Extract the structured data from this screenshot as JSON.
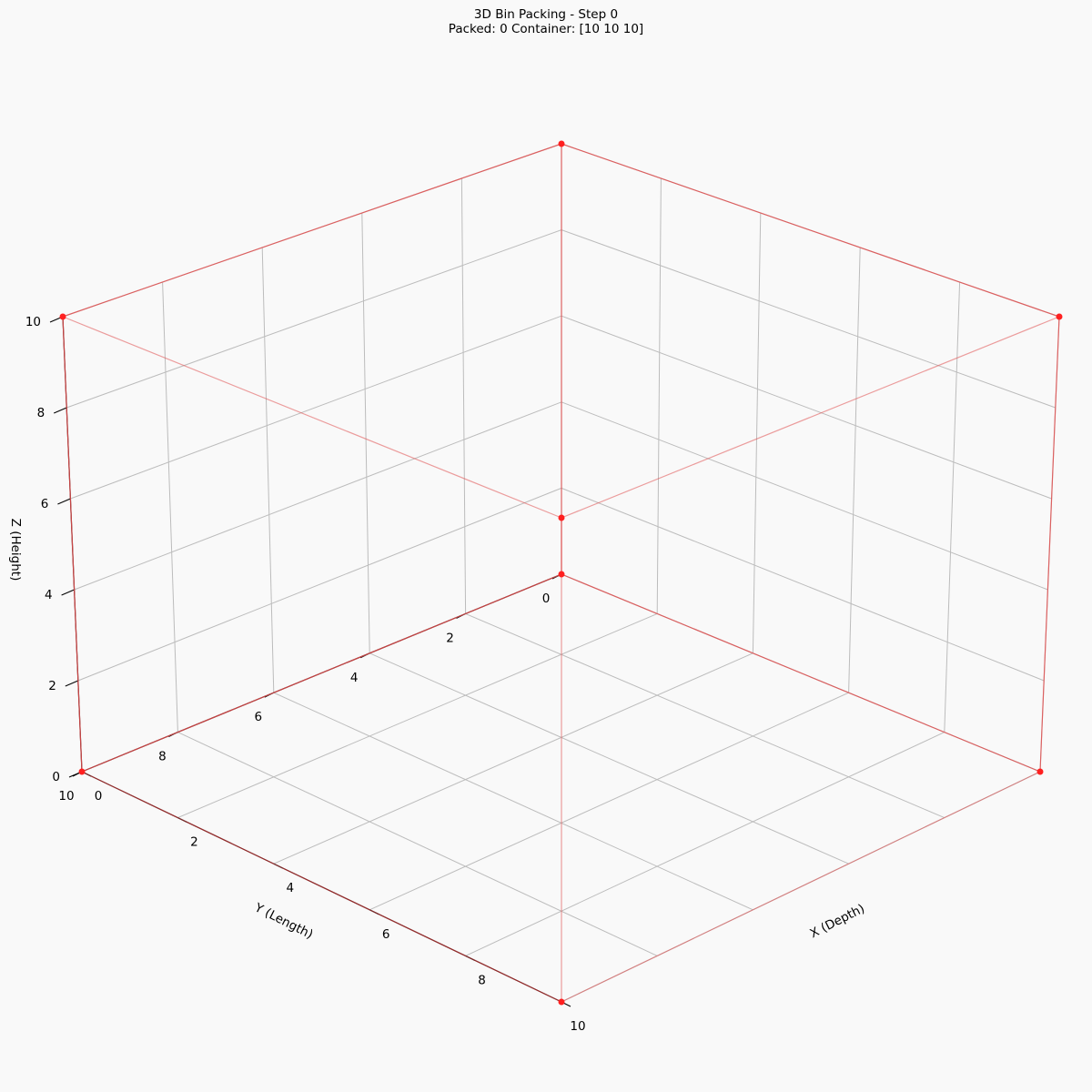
{
  "chart_data": {
    "type": "3d-wireframe",
    "title": "3D Bin Packing - Step 0",
    "subtitle": "Packed: 0  Container: [10 10 10]",
    "xlabel": "X (Depth)",
    "ylabel": "Y (Length)",
    "zlabel": "Z (Height)",
    "xlim": [
      0,
      10
    ],
    "ylim": [
      0,
      10
    ],
    "zlim": [
      0,
      10
    ],
    "x_ticks": [
      0,
      2,
      4,
      6,
      8,
      10
    ],
    "y_ticks": [
      0,
      2,
      4,
      6,
      8,
      10
    ],
    "z_ticks": [
      0,
      2,
      4,
      6,
      8,
      10
    ],
    "grid": true,
    "container": {
      "dims": [
        10,
        10,
        10
      ],
      "edge_color": "#e05050",
      "corner_color": "#ff2020"
    },
    "items": []
  }
}
